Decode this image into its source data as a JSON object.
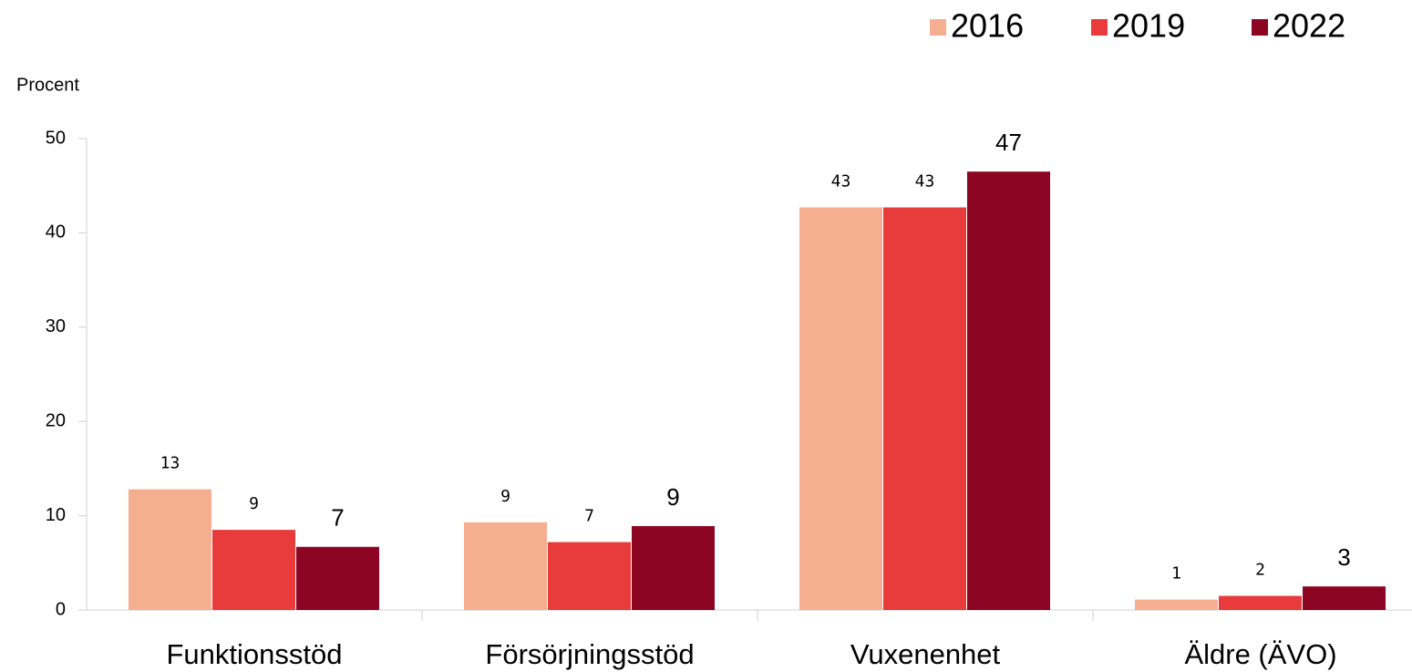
{
  "chart_data": {
    "type": "bar",
    "y_label": "Procent",
    "categories": [
      "Funktionsstöd",
      "Försörjningsstöd",
      "Vuxenenhet",
      "Äldre (ÄVO)"
    ],
    "series": [
      {
        "name": "2016",
        "color": "#f5ae90",
        "values": [
          12.8,
          9.3,
          42.7,
          1.1
        ],
        "value_labels": [
          "13",
          "9",
          "43",
          "1"
        ]
      },
      {
        "name": "2019",
        "color": "#e83c3c",
        "values": [
          8.5,
          7.2,
          42.7,
          1.5
        ],
        "value_labels": [
          "9",
          "7",
          "43",
          "2"
        ]
      },
      {
        "name": "2022",
        "color": "#8c0624",
        "values": [
          6.7,
          8.9,
          46.5,
          2.5
        ],
        "value_labels": [
          "7",
          "9",
          "47",
          "3"
        ]
      }
    ],
    "ylim": [
      0,
      50
    ],
    "yticks": [
      0,
      10,
      20,
      30,
      40,
      50
    ],
    "legend": "top-right"
  }
}
